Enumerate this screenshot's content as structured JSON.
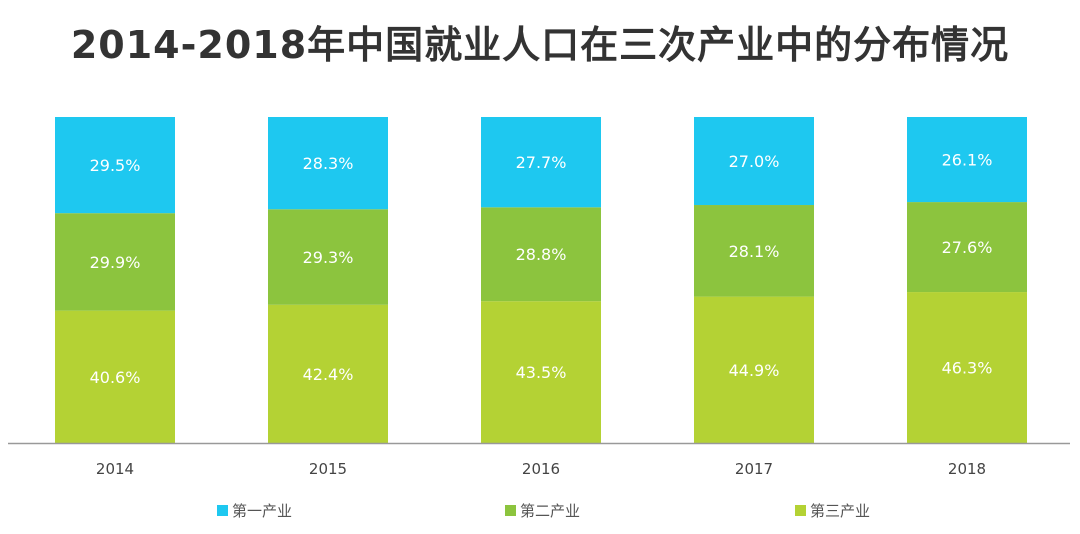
{
  "chart_data": {
    "type": "bar",
    "stacked": true,
    "title": "2014-2018年中国就业人口在三次产业中的分布情况",
    "categories": [
      "2014",
      "2015",
      "2016",
      "2017",
      "2018"
    ],
    "series": [
      {
        "name": "第三产业",
        "color": "#b4d234",
        "values": [
          40.6,
          42.4,
          43.5,
          44.9,
          46.3
        ],
        "labels": [
          "40.6%",
          "42.4%",
          "43.5%",
          "44.9%",
          "46.3%"
        ]
      },
      {
        "name": "第二产业",
        "color": "#8cc43e",
        "values": [
          29.9,
          29.3,
          28.8,
          28.1,
          27.6
        ],
        "labels": [
          "29.9%",
          "29.3%",
          "28.8%",
          "28.1%",
          "27.6%"
        ]
      },
      {
        "name": "第一产业",
        "color": "#1ec8f0",
        "values": [
          29.5,
          28.3,
          27.7,
          27.0,
          26.1
        ],
        "labels": [
          "29.5%",
          "28.3%",
          "27.7%",
          "27.0%",
          "26.1%"
        ]
      }
    ],
    "legend": [
      {
        "name": "第一产业",
        "color": "#1ec8f0"
      },
      {
        "name": "第二产业",
        "color": "#8cc43e"
      },
      {
        "name": "第三产业",
        "color": "#b4d234"
      }
    ],
    "ylim": [
      0,
      100
    ],
    "xlabel": "",
    "ylabel": "",
    "legend_position": "bottom"
  }
}
